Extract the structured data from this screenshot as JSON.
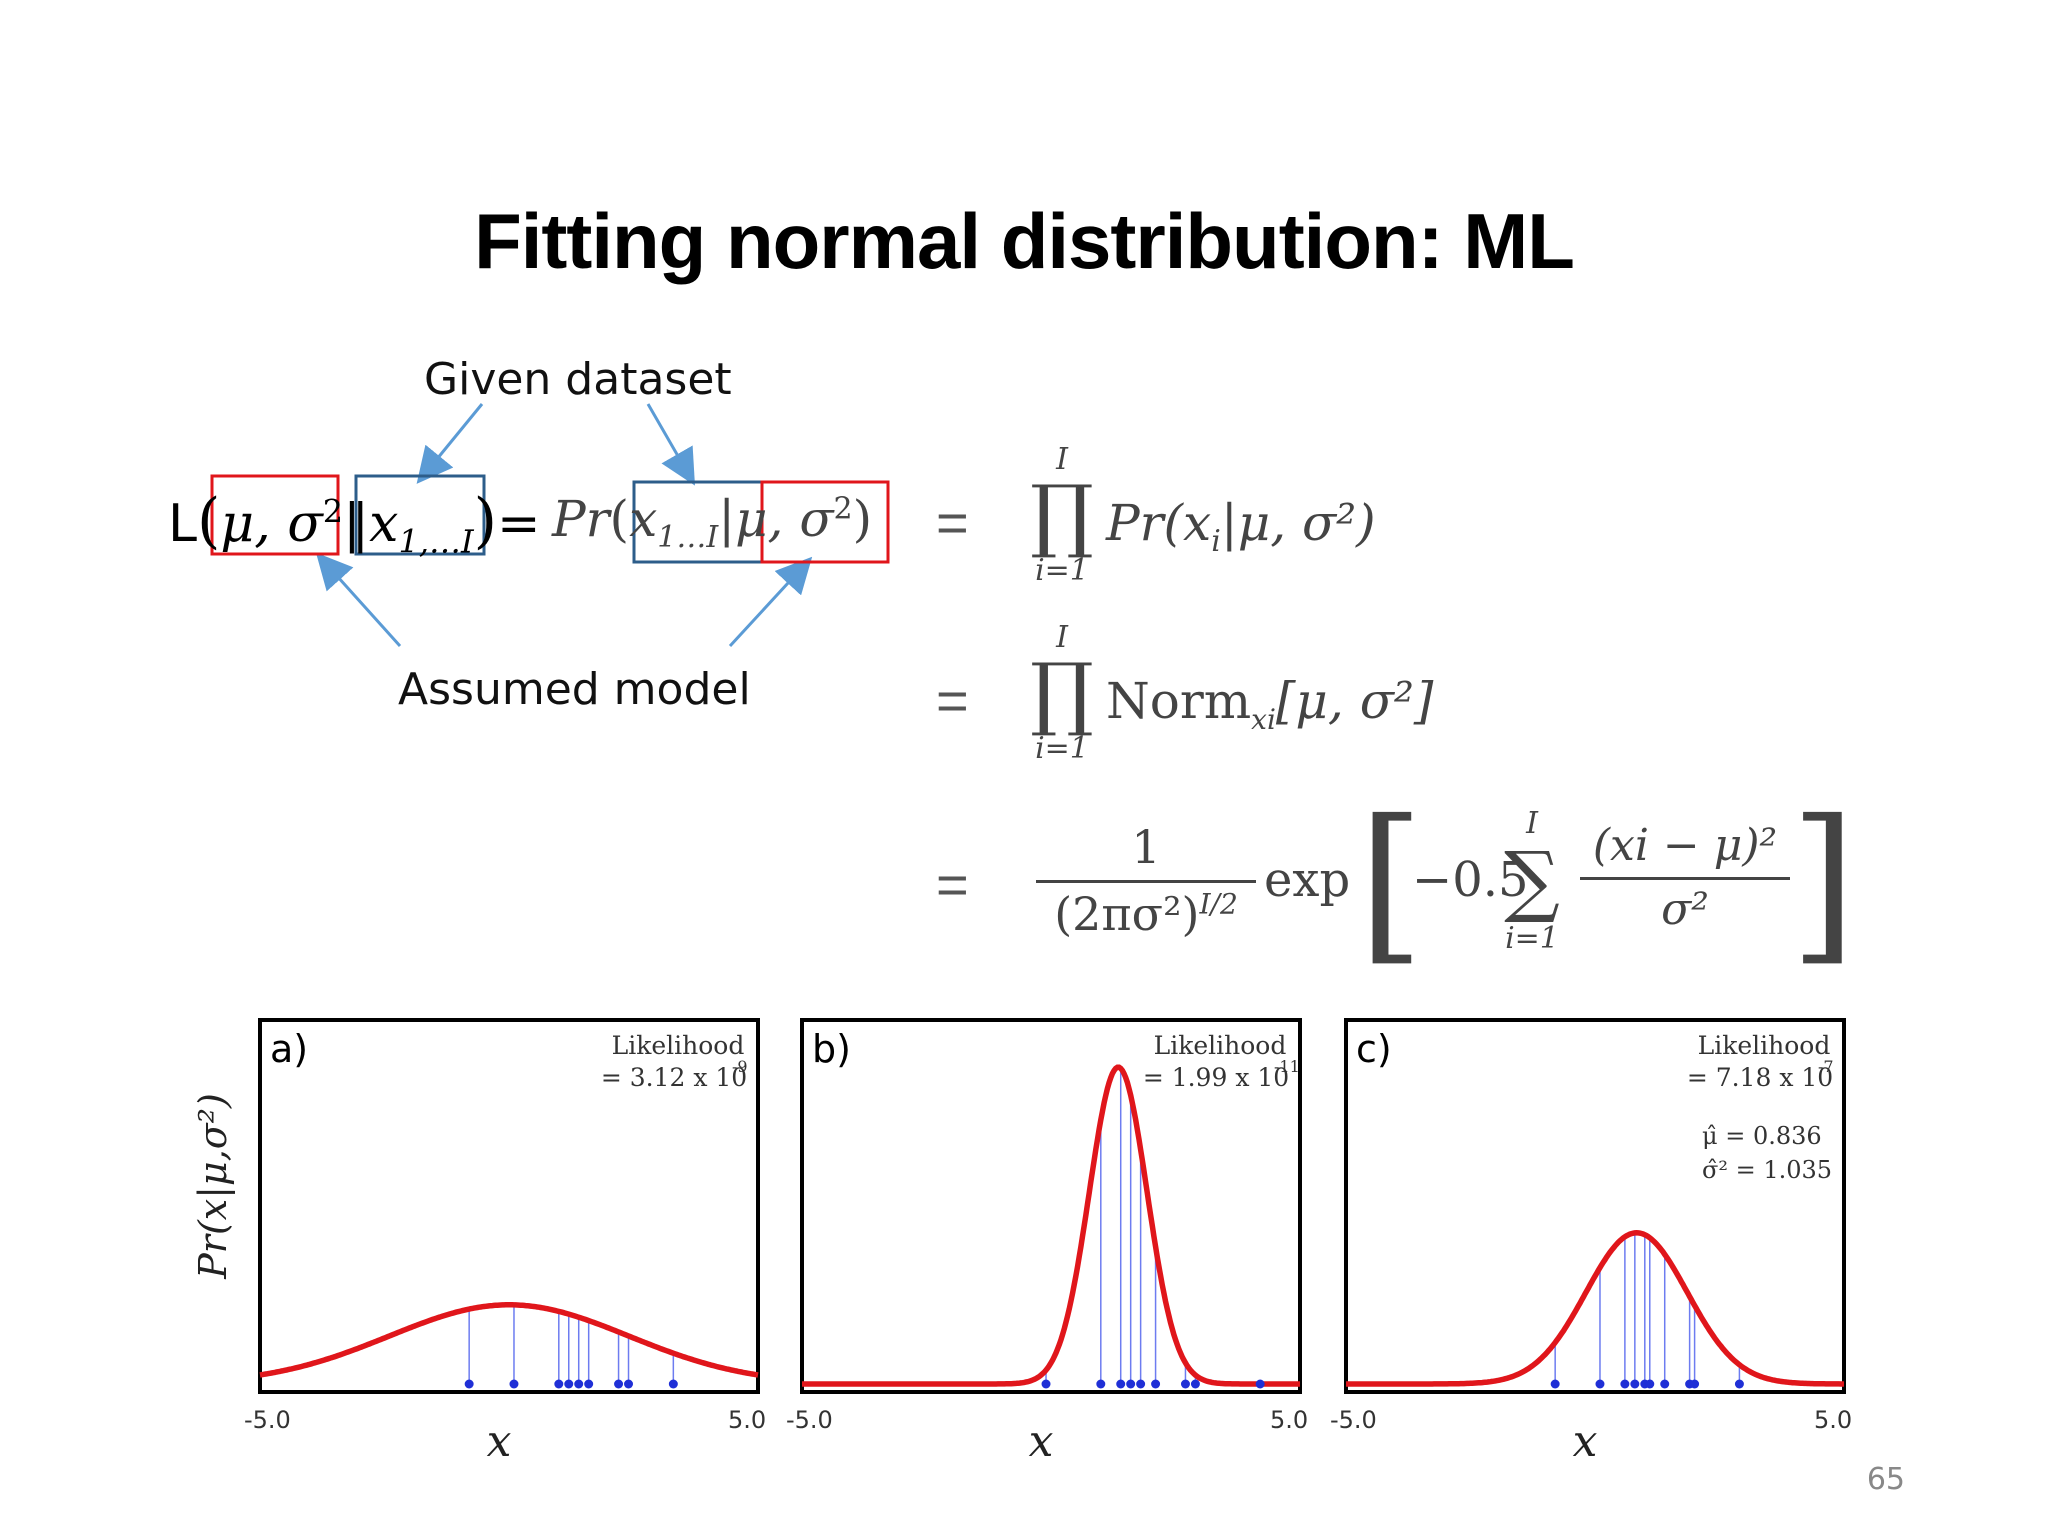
{
  "slide": {
    "title": "Fitting normal distribution: ML",
    "page_number": "65"
  },
  "annotations": {
    "given": "Given dataset",
    "assumed": "Assumed model"
  },
  "formula": {
    "lhs_L": "L",
    "lhs_params": "μ, σ",
    "lhs_sup": "2",
    "lhs_bar": "‖",
    "lhs_data": "x",
    "lhs_data_sub": "1,…I",
    "lhs_eq": "=",
    "pr": "Pr",
    "pr_data": "x",
    "pr_data_sub": "1…I",
    "pr_params": "μ, σ",
    "line1_prod": "∏",
    "line1_top": "I",
    "line1_bottom": "i=1",
    "line1_term": "Pr(x",
    "line1_term_sub": "i",
    "line1_term_end": "|μ, σ²)",
    "line2_term": "Norm",
    "line2_term_sub": "xi",
    "line2_term_end": "[μ, σ²]",
    "line3_num": "1",
    "line3_den": "(2πσ²)",
    "line3_den_sup": "I/2",
    "line3_exp": "exp",
    "line3_coef": "−0.5",
    "line3_sum": "∑",
    "line3_sum_top": "I",
    "line3_sum_bottom": "i=1",
    "line3_frac_num": "(xi − μ)²",
    "line3_frac_den": "σ²",
    "equals": "="
  },
  "chart_data": [
    {
      "type": "line",
      "panel": "a)",
      "xlim": [
        -5.0,
        5.0
      ],
      "x_ticks": [
        "-5.0",
        "5.0"
      ],
      "xlabel": "x",
      "ylabel": "Pr(x|μ,σ²)",
      "curve": {
        "mu": 0.0,
        "sigma": 2.4,
        "peak": 0.22
      },
      "points": [
        -0.8,
        0.1,
        1.0,
        1.2,
        1.4,
        1.6,
        2.2,
        2.4,
        3.3
      ],
      "annotation": [
        "Likelihood",
        "= 3.12 x 10",
        "-9"
      ],
      "color": "#e0161b"
    },
    {
      "type": "line",
      "panel": "b)",
      "xlim": [
        -5.0,
        5.0
      ],
      "x_ticks": [
        "-5.0",
        "5.0"
      ],
      "xlabel": "x",
      "ylabel": "",
      "curve": {
        "mu": 1.35,
        "sigma": 0.58,
        "peak": 0.88
      },
      "points": [
        -0.1,
        1.0,
        1.4,
        1.6,
        1.8,
        2.1,
        2.7,
        2.9,
        4.2
      ],
      "annotation": [
        "Likelihood",
        "= 1.99 x 10",
        "-11"
      ],
      "color": "#e0161b"
    },
    {
      "type": "line",
      "panel": "c)",
      "xlim": [
        -5.0,
        5.0
      ],
      "x_ticks": [
        "-5.0",
        "5.0"
      ],
      "xlabel": "x",
      "ylabel": "",
      "curve": {
        "mu": 0.836,
        "sigma": 1.017,
        "peak": 0.42
      },
      "points": [
        -0.8,
        0.1,
        0.6,
        0.8,
        1.0,
        1.1,
        1.4,
        1.9,
        2.0,
        2.9
      ],
      "annotation": [
        "Likelihood",
        "= 7.18 x 10",
        "-7"
      ],
      "estimates": [
        "μ̂  = 0.836",
        "σ̂² = 1.035"
      ],
      "color": "#e0161b"
    }
  ]
}
